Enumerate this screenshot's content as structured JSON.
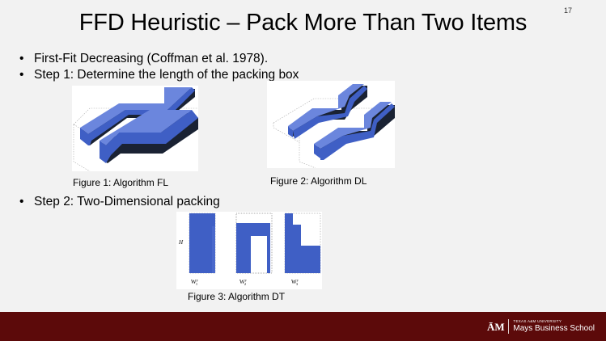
{
  "slide": {
    "number": "17",
    "title": "FFD Heuristic – Pack More Than Two Items",
    "bullets": [
      "First-Fit Decreasing (Coffman et al. 1978).",
      "Step 1: Determine the length of the packing box",
      "Step 2: Two-Dimensional packing"
    ],
    "bullet_glyph": "•"
  },
  "figures": {
    "fig1_caption": "Figure 1: Algorithm FL",
    "fig2_caption": "Figure 2: Algorithm DL",
    "fig3_caption": "Figure 3: Algorithm DT",
    "fig3_h_label": "H",
    "fig3_w_labels": [
      "W",
      "W",
      "W"
    ],
    "fig3_w_sup": "y",
    "fig3_w_subs": [
      "1",
      "2",
      "3"
    ]
  },
  "footer": {
    "logo_small": "TEXAS A&M UNIVERSITY",
    "logo_big": "Mays Business School"
  },
  "colors": {
    "block_front": "#3f5fc5",
    "block_top": "#6b86dd",
    "block_side": "#1a2233",
    "footer_bg": "#5c0a0a"
  }
}
